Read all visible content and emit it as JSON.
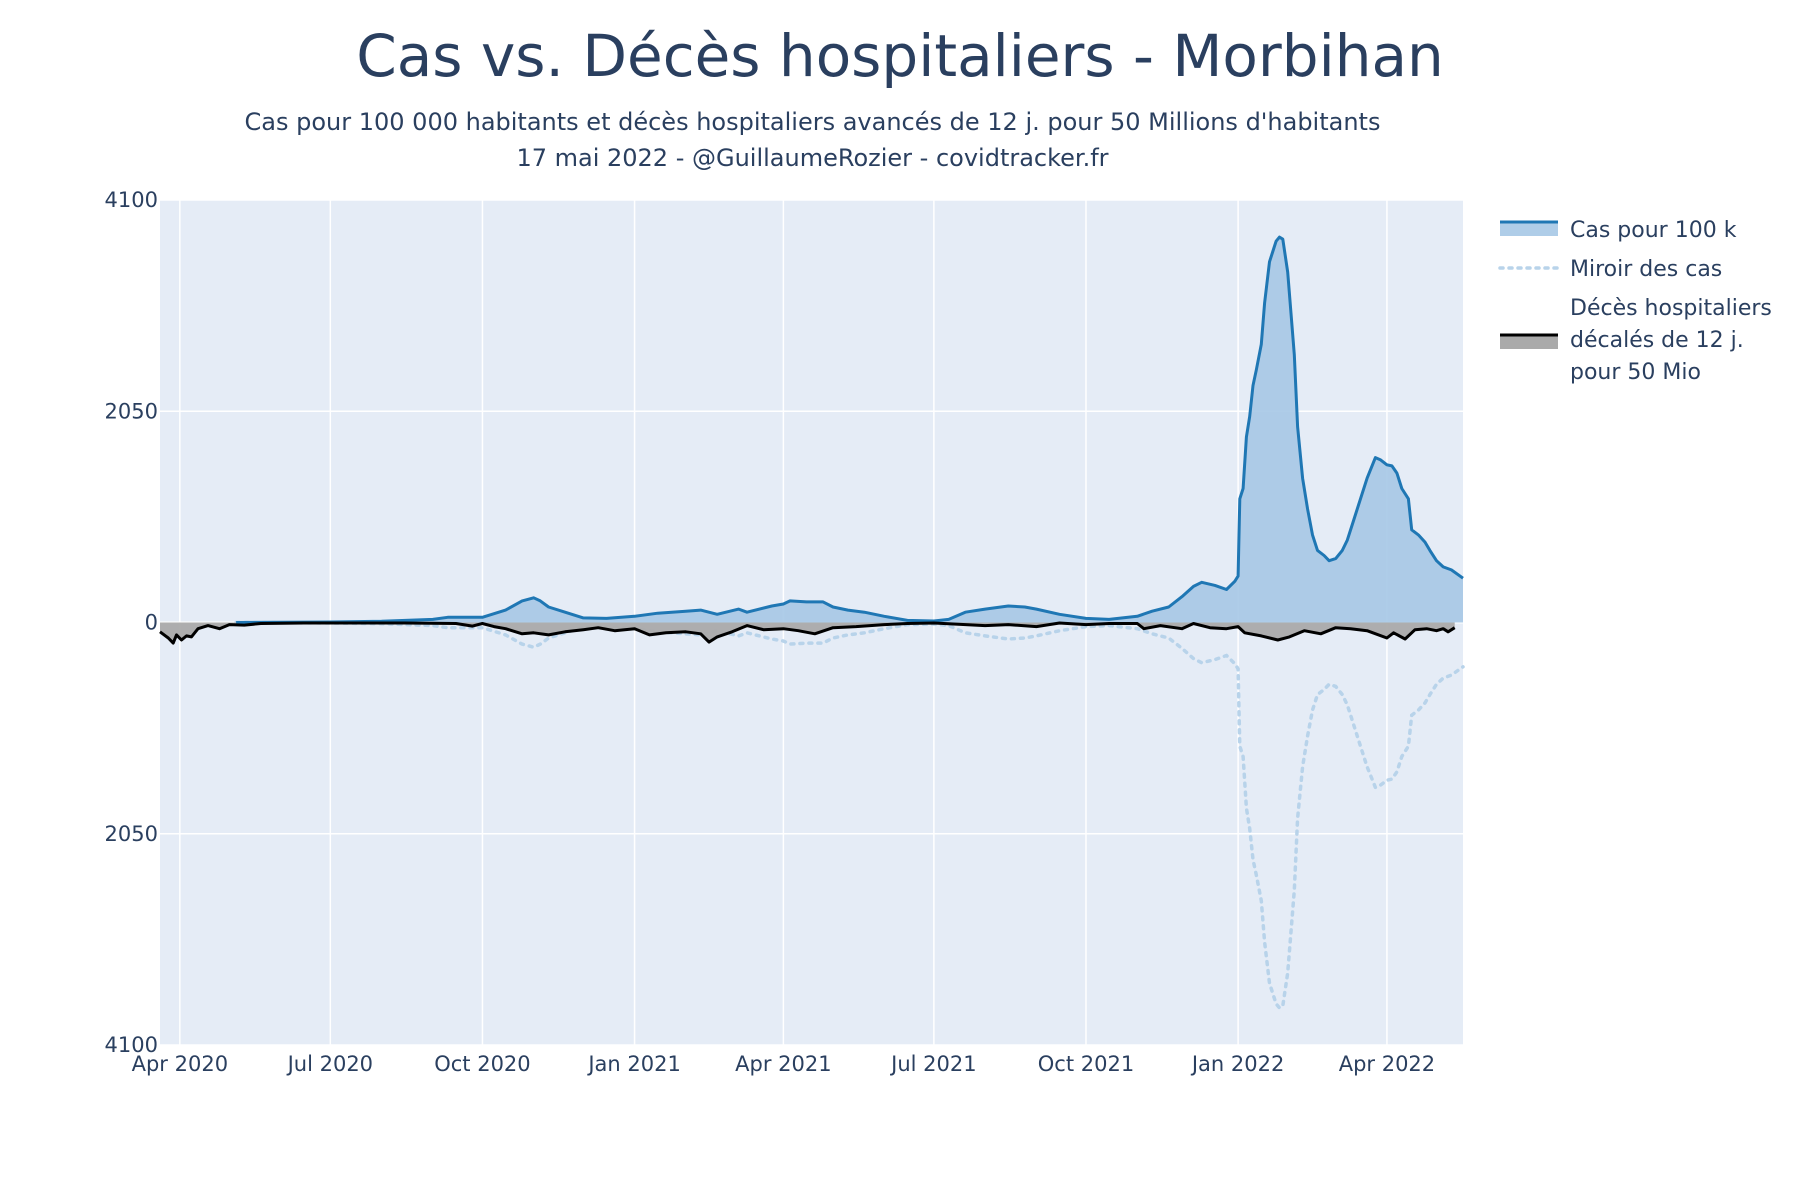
{
  "chart_data": {
    "type": "area",
    "title": "Cas vs. Décès hospitaliers - Morbihan",
    "subtitle": [
      "Cas pour 100 000 habitants et décès hospitaliers avancés de 12 j. pour 50 Millions d'habitants",
      "17 mai 2022 - @GuillaumeRozier - covidtracker.fr"
    ],
    "xlabel": "",
    "ylabel": "",
    "x_range": [
      "2020-03-20",
      "2022-05-17"
    ],
    "y_range": [
      -4100,
      4100
    ],
    "y_ticks": [
      {
        "value": 4100,
        "label": "4100"
      },
      {
        "value": 2050,
        "label": "2050"
      },
      {
        "value": 0,
        "label": "0"
      },
      {
        "value": -2050,
        "label": "2050"
      },
      {
        "value": -4100,
        "label": "4100"
      }
    ],
    "x_ticks": [
      {
        "date": "2020-04-01",
        "label": "Apr 2020"
      },
      {
        "date": "2020-07-01",
        "label": "Jul 2020"
      },
      {
        "date": "2020-10-01",
        "label": "Oct 2020"
      },
      {
        "date": "2021-01-01",
        "label": "Jan 2021"
      },
      {
        "date": "2021-04-01",
        "label": "Apr 2021"
      },
      {
        "date": "2021-07-01",
        "label": "Jul 2021"
      },
      {
        "date": "2021-10-01",
        "label": "Oct 2021"
      },
      {
        "date": "2022-01-01",
        "label": "Jan 2022"
      },
      {
        "date": "2022-04-01",
        "label": "Apr 2022"
      }
    ],
    "grid": true,
    "legend_position": "top-right",
    "series": [
      {
        "name": "Cas pour 100 k",
        "kind": "filled-line",
        "color": "#1f77b4",
        "fill": "#a6c8e6",
        "points": [
          [
            "2020-05-05",
            0
          ],
          [
            "2020-06-01",
            2
          ],
          [
            "2020-07-01",
            5
          ],
          [
            "2020-08-01",
            12
          ],
          [
            "2020-09-01",
            30
          ],
          [
            "2020-09-10",
            50
          ],
          [
            "2020-10-01",
            50
          ],
          [
            "2020-10-15",
            120
          ],
          [
            "2020-10-25",
            210
          ],
          [
            "2020-11-01",
            240
          ],
          [
            "2020-11-05",
            210
          ],
          [
            "2020-11-10",
            150
          ],
          [
            "2020-11-20",
            100
          ],
          [
            "2020-12-01",
            45
          ],
          [
            "2020-12-15",
            40
          ],
          [
            "2021-01-01",
            60
          ],
          [
            "2021-01-15",
            90
          ],
          [
            "2021-02-01",
            110
          ],
          [
            "2021-02-10",
            120
          ],
          [
            "2021-02-20",
            80
          ],
          [
            "2021-03-05",
            130
          ],
          [
            "2021-03-10",
            100
          ],
          [
            "2021-03-25",
            160
          ],
          [
            "2021-04-01",
            180
          ],
          [
            "2021-04-05",
            210
          ],
          [
            "2021-04-15",
            200
          ],
          [
            "2021-04-25",
            200
          ],
          [
            "2021-05-01",
            150
          ],
          [
            "2021-05-10",
            120
          ],
          [
            "2021-05-20",
            100
          ],
          [
            "2021-06-01",
            60
          ],
          [
            "2021-06-15",
            20
          ],
          [
            "2021-07-01",
            15
          ],
          [
            "2021-07-10",
            30
          ],
          [
            "2021-07-20",
            100
          ],
          [
            "2021-08-01",
            130
          ],
          [
            "2021-08-15",
            160
          ],
          [
            "2021-08-25",
            150
          ],
          [
            "2021-09-01",
            130
          ],
          [
            "2021-09-15",
            80
          ],
          [
            "2021-10-01",
            40
          ],
          [
            "2021-10-15",
            30
          ],
          [
            "2021-11-01",
            60
          ],
          [
            "2021-11-10",
            110
          ],
          [
            "2021-11-20",
            150
          ],
          [
            "2021-11-28",
            250
          ],
          [
            "2021-12-05",
            350
          ],
          [
            "2021-12-10",
            390
          ],
          [
            "2021-12-18",
            360
          ],
          [
            "2021-12-25",
            320
          ],
          [
            "2021-12-30",
            400
          ],
          [
            "2022-01-01",
            450
          ],
          [
            "2022-01-02",
            1200
          ],
          [
            "2022-01-04",
            1300
          ],
          [
            "2022-01-06",
            1800
          ],
          [
            "2022-01-08",
            2000
          ],
          [
            "2022-01-10",
            2300
          ],
          [
            "2022-01-12",
            2450
          ],
          [
            "2022-01-15",
            2700
          ],
          [
            "2022-01-17",
            3100
          ],
          [
            "2022-01-20",
            3500
          ],
          [
            "2022-01-22",
            3600
          ],
          [
            "2022-01-24",
            3700
          ],
          [
            "2022-01-26",
            3740
          ],
          [
            "2022-01-28",
            3720
          ],
          [
            "2022-01-31",
            3400
          ],
          [
            "2022-02-02",
            3000
          ],
          [
            "2022-02-04",
            2600
          ],
          [
            "2022-02-06",
            1900
          ],
          [
            "2022-02-09",
            1400
          ],
          [
            "2022-02-12",
            1100
          ],
          [
            "2022-02-15",
            850
          ],
          [
            "2022-02-18",
            700
          ],
          [
            "2022-02-22",
            650
          ],
          [
            "2022-02-25",
            600
          ],
          [
            "2022-03-01",
            620
          ],
          [
            "2022-03-05",
            700
          ],
          [
            "2022-03-08",
            800
          ],
          [
            "2022-03-12",
            1000
          ],
          [
            "2022-03-16",
            1200
          ],
          [
            "2022-03-20",
            1400
          ],
          [
            "2022-03-25",
            1600
          ],
          [
            "2022-03-28",
            1580
          ],
          [
            "2022-04-01",
            1530
          ],
          [
            "2022-04-04",
            1520
          ],
          [
            "2022-04-07",
            1450
          ],
          [
            "2022-04-10",
            1300
          ],
          [
            "2022-04-14",
            1200
          ],
          [
            "2022-04-16",
            900
          ],
          [
            "2022-04-20",
            850
          ],
          [
            "2022-04-24",
            780
          ],
          [
            "2022-04-27",
            700
          ],
          [
            "2022-05-01",
            600
          ],
          [
            "2022-05-05",
            540
          ],
          [
            "2022-05-10",
            510
          ],
          [
            "2022-05-17",
            430
          ]
        ]
      },
      {
        "name": "Miroir des cas",
        "kind": "dotted-line",
        "color": "#b8d3ea",
        "mirror_of": "Cas pour 100 k"
      },
      {
        "name": "Décès hospitaliers\ndécalés de 12 j.\npour 50 Mio",
        "kind": "filled-line",
        "color": "#000000",
        "fill": "#aaaaaa",
        "points": [
          [
            "2020-03-20",
            -90
          ],
          [
            "2020-03-25",
            -150
          ],
          [
            "2020-03-28",
            -200
          ],
          [
            "2020-03-30",
            -120
          ],
          [
            "2020-04-02",
            -170
          ],
          [
            "2020-04-05",
            -130
          ],
          [
            "2020-04-08",
            -140
          ],
          [
            "2020-04-12",
            -60
          ],
          [
            "2020-04-18",
            -30
          ],
          [
            "2020-04-25",
            -60
          ],
          [
            "2020-05-01",
            -20
          ],
          [
            "2020-05-10",
            -25
          ],
          [
            "2020-05-20",
            -10
          ],
          [
            "2020-06-15",
            -5
          ],
          [
            "2020-07-15",
            -5
          ],
          [
            "2020-08-15",
            -5
          ],
          [
            "2020-09-15",
            -10
          ],
          [
            "2020-09-25",
            -35
          ],
          [
            "2020-10-01",
            -10
          ],
          [
            "2020-10-08",
            -40
          ],
          [
            "2020-10-15",
            -60
          ],
          [
            "2020-10-25",
            -110
          ],
          [
            "2020-11-01",
            -100
          ],
          [
            "2020-11-10",
            -120
          ],
          [
            "2020-11-20",
            -90
          ],
          [
            "2020-12-01",
            -70
          ],
          [
            "2020-12-10",
            -50
          ],
          [
            "2020-12-20",
            -80
          ],
          [
            "2021-01-01",
            -60
          ],
          [
            "2021-01-10",
            -120
          ],
          [
            "2021-01-20",
            -100
          ],
          [
            "2021-02-01",
            -90
          ],
          [
            "2021-02-10",
            -110
          ],
          [
            "2021-02-15",
            -190
          ],
          [
            "2021-02-20",
            -140
          ],
          [
            "2021-03-01",
            -90
          ],
          [
            "2021-03-10",
            -30
          ],
          [
            "2021-03-20",
            -70
          ],
          [
            "2021-04-01",
            -60
          ],
          [
            "2021-04-10",
            -80
          ],
          [
            "2021-04-20",
            -110
          ],
          [
            "2021-05-01",
            -50
          ],
          [
            "2021-05-15",
            -40
          ],
          [
            "2021-06-01",
            -20
          ],
          [
            "2021-06-15",
            -10
          ],
          [
            "2021-07-01",
            -5
          ],
          [
            "2021-08-01",
            -30
          ],
          [
            "2021-08-15",
            -20
          ],
          [
            "2021-09-01",
            -40
          ],
          [
            "2021-09-15",
            -5
          ],
          [
            "2021-10-01",
            -20
          ],
          [
            "2021-10-15",
            -10
          ],
          [
            "2021-11-01",
            -10
          ],
          [
            "2021-11-05",
            -60
          ],
          [
            "2021-11-15",
            -30
          ],
          [
            "2021-11-28",
            -60
          ],
          [
            "2021-12-05",
            -10
          ],
          [
            "2021-12-15",
            -50
          ],
          [
            "2021-12-25",
            -60
          ],
          [
            "2022-01-01",
            -40
          ],
          [
            "2022-01-05",
            -100
          ],
          [
            "2022-01-15",
            -130
          ],
          [
            "2022-01-25",
            -170
          ],
          [
            "2022-02-01",
            -140
          ],
          [
            "2022-02-10",
            -80
          ],
          [
            "2022-02-20",
            -110
          ],
          [
            "2022-03-01",
            -50
          ],
          [
            "2022-03-10",
            -60
          ],
          [
            "2022-03-20",
            -80
          ],
          [
            "2022-04-01",
            -150
          ],
          [
            "2022-04-05",
            -100
          ],
          [
            "2022-04-12",
            -160
          ],
          [
            "2022-04-18",
            -70
          ],
          [
            "2022-04-25",
            -60
          ],
          [
            "2022-05-01",
            -80
          ],
          [
            "2022-05-05",
            -60
          ],
          [
            "2022-05-08",
            -90
          ],
          [
            "2022-05-12",
            -50
          ]
        ]
      }
    ]
  }
}
